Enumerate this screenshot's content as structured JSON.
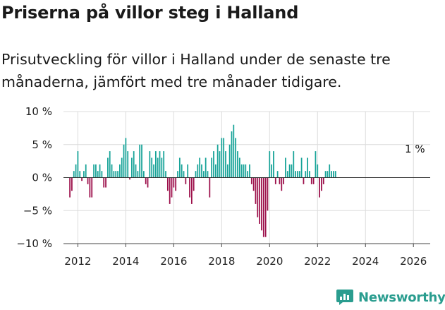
{
  "title": "Priserna på villor steg i Halland",
  "subtitle": "Prisutveckling för villor i Halland under de senaste tre månaderna, jämfört med tre månader tidigare.",
  "brand": {
    "name": "Newsworthy",
    "icon": "newsworthy-logo-icon",
    "color": "#2a9d8f"
  },
  "chart_data": {
    "type": "bar",
    "title": "Priserna på villor steg i Halland",
    "xlabel": "",
    "ylabel": "",
    "ylim": [
      -10,
      10
    ],
    "xlim": [
      2011.4,
      2026.7
    ],
    "positive_color": "#17a398",
    "negative_color": "#9c0f4a",
    "x_ticks": [
      2012,
      2014,
      2016,
      2018,
      2020,
      2022,
      2024,
      2026
    ],
    "x_tick_labels": [
      "2012",
      "2014",
      "2016",
      "2018",
      "2020",
      "2022",
      "2024",
      "2026"
    ],
    "y_ticks": [
      10,
      5,
      0,
      -5,
      -10
    ],
    "y_tick_labels": [
      "10 %",
      "5 %",
      "0 %",
      "−5 %",
      "−10 %"
    ],
    "annotation": {
      "text": "1 %",
      "x": 2026.083,
      "value": 1
    },
    "start": 2011.667,
    "step": 0.08333,
    "values": [
      -3,
      -2,
      1,
      2,
      4,
      1,
      -0.5,
      1,
      2,
      -1,
      -3,
      -3,
      2,
      2,
      1,
      2,
      1,
      -1.5,
      -1.5,
      3,
      4,
      2,
      1,
      1,
      1,
      2,
      3,
      5,
      6,
      4,
      -0.3,
      3,
      4,
      2,
      1,
      5,
      5,
      1,
      -1,
      -1.5,
      4,
      3,
      2,
      4,
      3,
      4,
      3,
      4,
      1,
      -2,
      -4,
      -3,
      -1.5,
      -2,
      1,
      3,
      2,
      1,
      -1,
      2,
      -3,
      -4,
      -2,
      1,
      2,
      3,
      2,
      1,
      3,
      1,
      -3,
      3,
      4,
      2,
      5,
      4,
      6,
      6,
      4,
      2,
      5,
      7,
      8,
      6,
      4,
      3,
      2,
      2,
      2,
      1,
      2,
      -1,
      -2,
      -4,
      -6,
      -7,
      -8,
      -9,
      -9,
      -5,
      4,
      2,
      4,
      -1,
      1,
      -1,
      -2,
      -1,
      3,
      1,
      2,
      2,
      4,
      1,
      1,
      1,
      3,
      -1,
      1,
      3,
      1,
      -1,
      -1,
      4,
      2,
      -3,
      -2,
      -1,
      1,
      1,
      2,
      1,
      1,
      1
    ]
  }
}
